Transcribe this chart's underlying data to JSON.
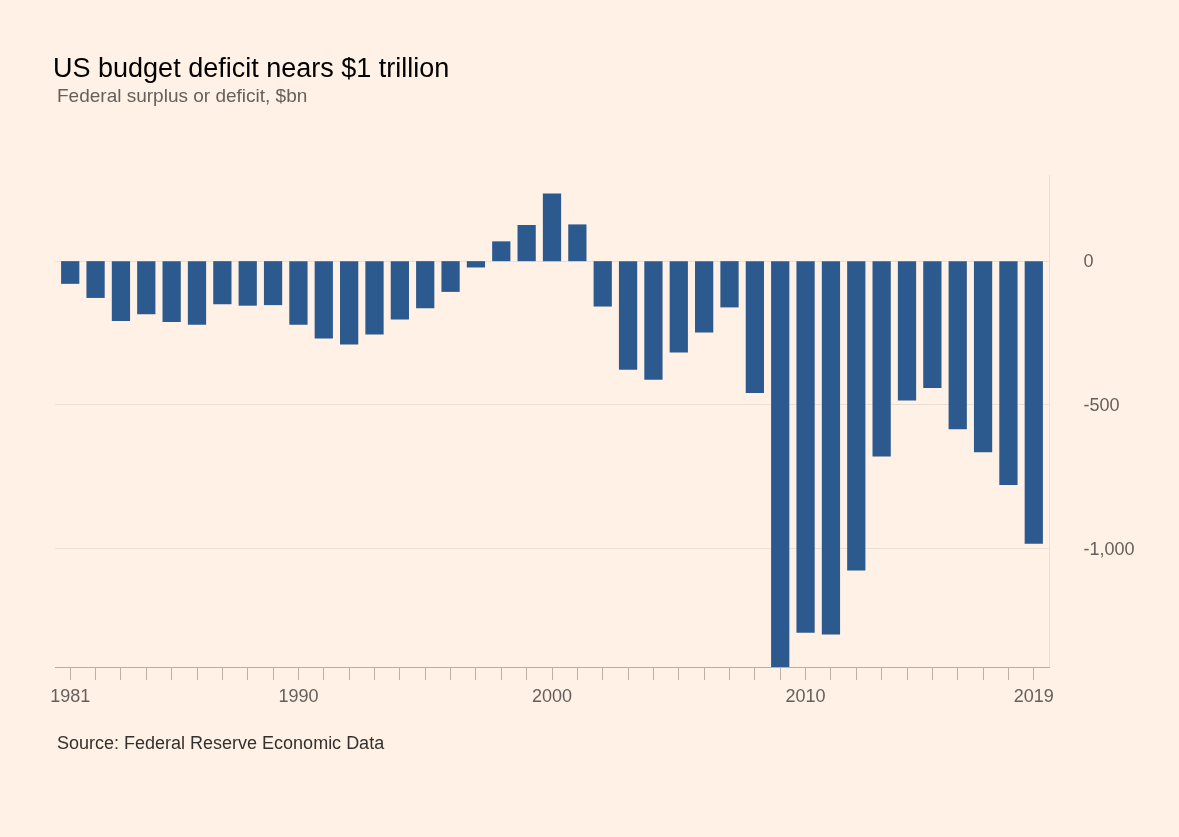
{
  "chart_data": {
    "type": "bar",
    "title": "US budget deficit nears $1 trillion",
    "subtitle": "Federal surplus or deficit, $bn",
    "annotations": [
      "Source: Federal Reserve Economic Data"
    ],
    "x": [
      1981,
      1982,
      1983,
      1984,
      1985,
      1986,
      1987,
      1988,
      1989,
      1990,
      1991,
      1992,
      1993,
      1994,
      1995,
      1996,
      1997,
      1998,
      1999,
      2000,
      2001,
      2002,
      2003,
      2004,
      2005,
      2006,
      2007,
      2008,
      2009,
      2010,
      2011,
      2012,
      2013,
      2014,
      2015,
      2016,
      2017,
      2018,
      2019
    ],
    "values": [
      -79,
      -128,
      -208,
      -185,
      -212,
      -221,
      -150,
      -155,
      -153,
      -221,
      -269,
      -290,
      -255,
      -203,
      -164,
      -107,
      -22,
      69,
      126,
      236,
      128,
      -158,
      -378,
      -413,
      -318,
      -248,
      -161,
      -459,
      -1413,
      -1294,
      -1300,
      -1077,
      -680,
      -485,
      -442,
      -585,
      -665,
      -779,
      -984
    ],
    "color": "#2d5a8e",
    "xlim": [
      1980.4,
      2019.6
    ],
    "xticks": [
      1981,
      {
        "value": 1982,
        "label": null
      },
      {
        "value": 1983,
        "label": null
      },
      {
        "value": 1984,
        "label": null
      },
      {
        "value": 1985,
        "label": null
      },
      {
        "value": 1986,
        "label": null
      },
      {
        "value": 1987,
        "label": null
      },
      {
        "value": 1988,
        "label": null
      },
      {
        "value": 1989,
        "label": null
      },
      1990,
      {
        "value": 1991,
        "label": null
      },
      {
        "value": 1992,
        "label": null
      },
      {
        "value": 1993,
        "label": null
      },
      {
        "value": 1994,
        "label": null
      },
      {
        "value": 1995,
        "label": null
      },
      {
        "value": 1996,
        "label": null
      },
      {
        "value": 1997,
        "label": null
      },
      {
        "value": 1998,
        "label": null
      },
      {
        "value": 1999,
        "label": null
      },
      2000,
      {
        "value": 2001,
        "label": null
      },
      {
        "value": 2002,
        "label": null
      },
      {
        "value": 2003,
        "label": null
      },
      {
        "value": 2004,
        "label": null
      },
      {
        "value": 2005,
        "label": null
      },
      {
        "value": 2006,
        "label": null
      },
      {
        "value": 2007,
        "label": null
      },
      {
        "value": 2008,
        "label": null
      },
      {
        "value": 2009,
        "label": null
      },
      2010,
      {
        "value": 2011,
        "label": null
      },
      {
        "value": 2012,
        "label": null
      },
      {
        "value": 2013,
        "label": null
      },
      {
        "value": 2014,
        "label": null
      },
      {
        "value": 2015,
        "label": null
      },
      {
        "value": 2016,
        "label": null
      },
      {
        "value": 2017,
        "label": null
      },
      {
        "value": 2018,
        "label": null
      },
      2019
    ],
    "ylim": [
      -1413,
      300
    ],
    "yticks": [
      0,
      -500,
      {
        "value": -1000,
        "label": "-1,000"
      }
    ],
    "grid": "y"
  }
}
